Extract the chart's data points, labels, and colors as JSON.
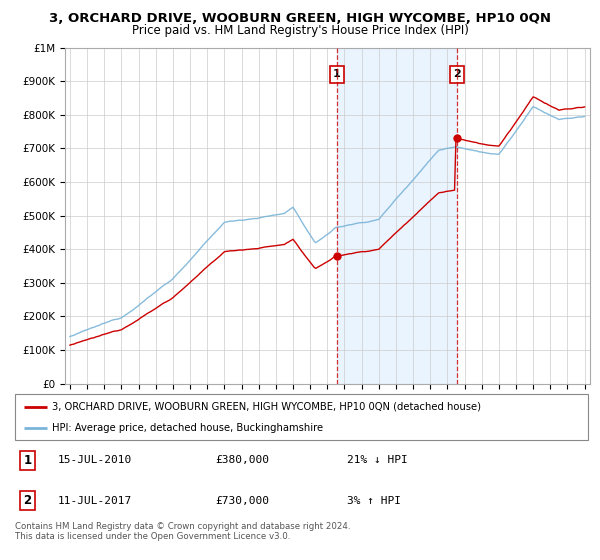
{
  "title": "3, ORCHARD DRIVE, WOOBURN GREEN, HIGH WYCOMBE, HP10 0QN",
  "subtitle": "Price paid vs. HM Land Registry's House Price Index (HPI)",
  "hpi_color": "#7ab4d8",
  "price_color": "#cc0000",
  "marker1_date": 2010.54,
  "marker2_date": 2017.54,
  "marker1_price": 380000,
  "marker2_price": 730000,
  "ylim_min": 0,
  "ylim_max": 1000000,
  "xlim_min": 1994.7,
  "xlim_max": 2025.3,
  "legend_line1": "3, ORCHARD DRIVE, WOOBURN GREEN, HIGH WYCOMBE, HP10 0QN (detached house)",
  "legend_line2": "HPI: Average price, detached house, Buckinghamshire",
  "annotation1_label": "1",
  "annotation1_date": "15-JUL-2010",
  "annotation1_price": "£380,000",
  "annotation1_hpi": "21% ↓ HPI",
  "annotation2_label": "2",
  "annotation2_date": "11-JUL-2017",
  "annotation2_price": "£730,000",
  "annotation2_hpi": "3% ↑ HPI",
  "footer": "Contains HM Land Registry data © Crown copyright and database right 2024.\nThis data is licensed under the Open Government Licence v3.0.",
  "yticks": [
    0,
    100000,
    200000,
    300000,
    400000,
    500000,
    600000,
    700000,
    800000,
    900000,
    1000000
  ],
  "ytick_labels": [
    "£0",
    "£100K",
    "£200K",
    "£300K",
    "£400K",
    "£500K",
    "£600K",
    "£700K",
    "£800K",
    "£900K",
    "£1M"
  ],
  "xticks": [
    1995,
    1996,
    1997,
    1998,
    1999,
    2000,
    2001,
    2002,
    2003,
    2004,
    2005,
    2006,
    2007,
    2008,
    2009,
    2010,
    2011,
    2012,
    2013,
    2014,
    2015,
    2016,
    2017,
    2018,
    2019,
    2020,
    2021,
    2022,
    2023,
    2024,
    2025
  ],
  "shade_color": "#ddeeff",
  "shade_alpha": 0.6
}
